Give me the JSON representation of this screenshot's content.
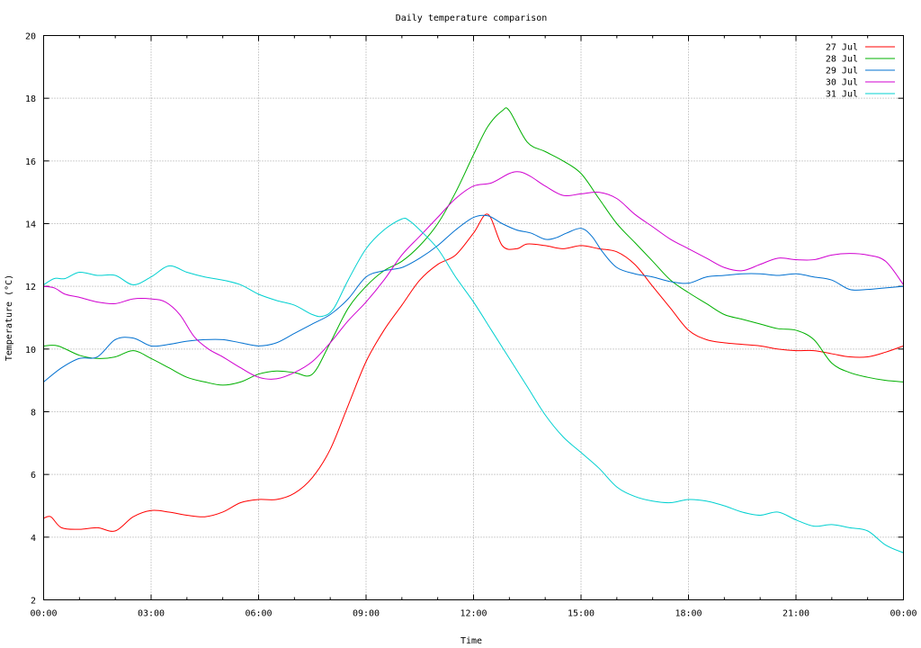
{
  "chart_data": {
    "type": "line",
    "title": "Daily temperature comparison",
    "xlabel": "Time",
    "ylabel": "Temperature (°C)",
    "x_unit": "hours",
    "xlim": [
      0,
      24
    ],
    "ylim": [
      2,
      20
    ],
    "x_ticks": [
      {
        "value": 0,
        "label": "00:00"
      },
      {
        "value": 3,
        "label": "03:00"
      },
      {
        "value": 6,
        "label": "06:00"
      },
      {
        "value": 9,
        "label": "09:00"
      },
      {
        "value": 12,
        "label": "12:00"
      },
      {
        "value": 15,
        "label": "15:00"
      },
      {
        "value": 18,
        "label": "18:00"
      },
      {
        "value": 21,
        "label": "21:00"
      },
      {
        "value": 24,
        "label": "00:00"
      }
    ],
    "y_ticks": [
      2,
      4,
      6,
      8,
      10,
      12,
      14,
      16,
      18,
      20
    ],
    "grid": true,
    "legend_position": "top-right",
    "series": [
      {
        "name": "27 Jul",
        "color": "#ff0000",
        "x": [
          0,
          0.2,
          0.5,
          1.0,
          1.5,
          2.0,
          2.5,
          3.0,
          3.5,
          4.0,
          4.5,
          5.0,
          5.5,
          6.0,
          6.5,
          7.0,
          7.5,
          8.0,
          8.5,
          9.0,
          9.5,
          10.0,
          10.5,
          11.0,
          11.5,
          12.0,
          12.4,
          12.8,
          13.2,
          13.5,
          14.0,
          14.5,
          15.0,
          15.5,
          16.0,
          16.5,
          17.0,
          17.5,
          18.0,
          18.5,
          19.0,
          19.5,
          20.0,
          20.5,
          21.0,
          21.5,
          22.0,
          22.5,
          23.0,
          23.5,
          24.0
        ],
        "y": [
          4.6,
          4.65,
          4.3,
          4.25,
          4.3,
          4.2,
          4.65,
          4.85,
          4.8,
          4.7,
          4.65,
          4.8,
          5.1,
          5.2,
          5.2,
          5.4,
          5.9,
          6.8,
          8.2,
          9.6,
          10.6,
          11.4,
          12.2,
          12.7,
          13.0,
          13.7,
          14.3,
          13.3,
          13.2,
          13.35,
          13.3,
          13.2,
          13.3,
          13.2,
          13.1,
          12.7,
          12.0,
          11.3,
          10.6,
          10.3,
          10.2,
          10.15,
          10.1,
          10.0,
          9.95,
          9.95,
          9.85,
          9.75,
          9.75,
          9.9,
          10.1
        ]
      },
      {
        "name": "28 Jul",
        "color": "#00b000",
        "x": [
          0,
          0.4,
          1.0,
          1.5,
          2.0,
          2.5,
          3.0,
          3.5,
          4.0,
          4.5,
          5.0,
          5.5,
          6.0,
          6.5,
          7.0,
          7.5,
          8.0,
          8.5,
          9.0,
          9.5,
          10.0,
          10.5,
          11.0,
          11.5,
          12.0,
          12.4,
          12.8,
          13.0,
          13.5,
          14.0,
          14.5,
          15.0,
          15.5,
          16.0,
          16.5,
          17.0,
          17.5,
          18.0,
          18.5,
          19.0,
          19.5,
          20.0,
          20.5,
          21.0,
          21.5,
          22.0,
          22.5,
          23.0,
          23.5,
          24.0
        ],
        "y": [
          10.1,
          10.1,
          9.8,
          9.7,
          9.75,
          9.95,
          9.7,
          9.4,
          9.1,
          8.95,
          8.85,
          8.95,
          9.2,
          9.3,
          9.25,
          9.2,
          10.2,
          11.3,
          12.0,
          12.5,
          12.8,
          13.3,
          14.0,
          15.0,
          16.2,
          17.1,
          17.6,
          17.6,
          16.6,
          16.3,
          16.0,
          15.6,
          14.8,
          14.0,
          13.4,
          12.8,
          12.2,
          11.8,
          11.45,
          11.1,
          10.95,
          10.8,
          10.65,
          10.6,
          10.3,
          9.55,
          9.25,
          9.1,
          9.0,
          8.95
        ]
      },
      {
        "name": "29 Jul",
        "color": "#0070d0",
        "x": [
          0,
          0.5,
          1.0,
          1.5,
          2.0,
          2.5,
          3.0,
          3.5,
          4.0,
          4.5,
          5.0,
          5.5,
          6.0,
          6.5,
          7.0,
          7.5,
          8.0,
          8.5,
          9.0,
          9.5,
          10.0,
          10.5,
          11.0,
          11.5,
          12.0,
          12.4,
          12.8,
          13.2,
          13.6,
          14.0,
          14.3,
          14.6,
          15.0,
          15.3,
          15.6,
          16.0,
          16.5,
          17.0,
          17.5,
          18.0,
          18.5,
          19.0,
          19.5,
          20.0,
          20.5,
          21.0,
          21.5,
          22.0,
          22.5,
          23.0,
          23.5,
          24.0
        ],
        "y": [
          8.95,
          9.4,
          9.7,
          9.75,
          10.3,
          10.35,
          10.1,
          10.15,
          10.25,
          10.3,
          10.3,
          10.2,
          10.1,
          10.2,
          10.5,
          10.8,
          11.1,
          11.6,
          12.3,
          12.5,
          12.6,
          12.9,
          13.3,
          13.8,
          14.2,
          14.25,
          14.0,
          13.8,
          13.7,
          13.5,
          13.55,
          13.7,
          13.85,
          13.6,
          13.1,
          12.6,
          12.4,
          12.3,
          12.15,
          12.1,
          12.3,
          12.35,
          12.4,
          12.4,
          12.35,
          12.4,
          12.3,
          12.2,
          11.9,
          11.9,
          11.95,
          12.0
        ]
      },
      {
        "name": "30 Jul",
        "color": "#d000d0",
        "x": [
          0,
          0.3,
          0.6,
          1.0,
          1.5,
          2.0,
          2.5,
          3.0,
          3.4,
          3.8,
          4.2,
          4.6,
          5.0,
          5.5,
          6.0,
          6.5,
          7.0,
          7.5,
          8.0,
          8.5,
          9.0,
          9.5,
          10.0,
          10.5,
          11.0,
          11.5,
          12.0,
          12.5,
          13.0,
          13.3,
          13.6,
          14.0,
          14.5,
          15.0,
          15.5,
          16.0,
          16.5,
          17.0,
          17.5,
          18.0,
          18.5,
          19.0,
          19.5,
          20.0,
          20.5,
          21.0,
          21.5,
          22.0,
          22.5,
          23.0,
          23.5,
          24.0
        ],
        "y": [
          12.0,
          11.95,
          11.75,
          11.65,
          11.5,
          11.45,
          11.6,
          11.6,
          11.5,
          11.1,
          10.4,
          10.0,
          9.75,
          9.4,
          9.1,
          9.05,
          9.25,
          9.6,
          10.2,
          10.9,
          11.5,
          12.2,
          13.0,
          13.6,
          14.2,
          14.8,
          15.2,
          15.3,
          15.6,
          15.65,
          15.5,
          15.2,
          14.9,
          14.95,
          15.0,
          14.8,
          14.3,
          13.9,
          13.5,
          13.2,
          12.9,
          12.6,
          12.5,
          12.7,
          12.9,
          12.85,
          12.85,
          13.0,
          13.05,
          13.0,
          12.8,
          12.05
        ]
      },
      {
        "name": "31 Jul",
        "color": "#00d0d0",
        "x": [
          0,
          0.3,
          0.6,
          1.0,
          1.5,
          2.0,
          2.5,
          3.0,
          3.5,
          4.0,
          4.5,
          5.0,
          5.5,
          6.0,
          6.5,
          7.0,
          7.5,
          7.8,
          8.1,
          8.5,
          9.0,
          9.5,
          10.0,
          10.2,
          10.5,
          11.0,
          11.5,
          12.0,
          12.5,
          13.0,
          13.5,
          14.0,
          14.5,
          15.0,
          15.5,
          16.0,
          16.5,
          17.0,
          17.5,
          18.0,
          18.5,
          19.0,
          19.5,
          20.0,
          20.5,
          21.0,
          21.5,
          22.0,
          22.5,
          23.0,
          23.5,
          24.0
        ],
        "y": [
          12.05,
          12.25,
          12.25,
          12.45,
          12.35,
          12.35,
          12.05,
          12.3,
          12.65,
          12.45,
          12.3,
          12.2,
          12.05,
          11.75,
          11.55,
          11.4,
          11.1,
          11.05,
          11.3,
          12.2,
          13.2,
          13.8,
          14.15,
          14.1,
          13.8,
          13.2,
          12.3,
          11.5,
          10.6,
          9.7,
          8.8,
          7.9,
          7.2,
          6.7,
          6.2,
          5.6,
          5.3,
          5.15,
          5.1,
          5.2,
          5.15,
          5.0,
          4.8,
          4.7,
          4.8,
          4.55,
          4.35,
          4.4,
          4.3,
          4.2,
          3.75,
          3.5
        ]
      }
    ]
  }
}
